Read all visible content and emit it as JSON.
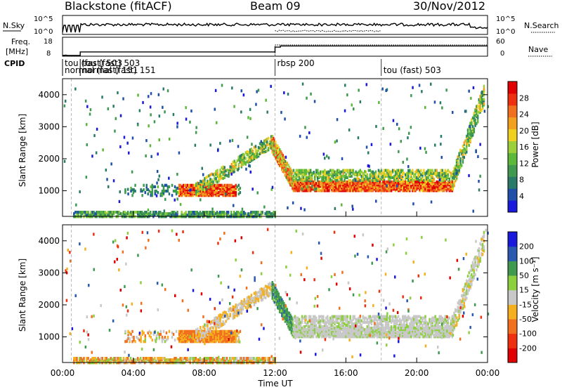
{
  "header": {
    "title": "Blackstone (fitACF)",
    "beam": "Beam 09",
    "date": "30/Nov/2012"
  },
  "summary": {
    "nsky_label": "N.Sky",
    "nsearch_label": "N.Search",
    "noise_ticks": [
      "10^5",
      "10^0"
    ],
    "freq_label": "Freq. [MHz]",
    "freq_ticks": [
      "18",
      "8"
    ],
    "nave_label": "Nave",
    "nave_ticks": [
      "60",
      "0"
    ],
    "cpid_label": "CPID"
  },
  "cpid_segments": [
    {
      "time_h": 0.0,
      "label": "tou (fast) 503"
    },
    {
      "time_h": 0.0,
      "label": "normal (fast) 151"
    },
    {
      "time_h": 1.0,
      "label": "tou (fast) 503"
    },
    {
      "time_h": 1.0,
      "label": "normal (fast) 151"
    },
    {
      "time_h": 12.0,
      "label": "rbsp 200"
    },
    {
      "time_h": 18.0,
      "label": "tou (fast) 503"
    }
  ],
  "chart_data": [
    {
      "type": "heatmap",
      "name": "power",
      "ylabel": "Slant Range [km]",
      "ylim": [
        200,
        4500
      ],
      "xlim_hours": [
        0,
        24
      ],
      "yticks": [
        "1000",
        "2000",
        "3000",
        "4000"
      ],
      "colorbar": {
        "label": "Power [dB]",
        "ticks": [
          "4",
          "8",
          "12",
          "16",
          "20",
          "24",
          "28"
        ],
        "colors": [
          "#1a1adc",
          "#1f4fa8",
          "#2a7a6a",
          "#3f9a50",
          "#5cb83a",
          "#9cd03a",
          "#f0d020",
          "#f2a020",
          "#f07020",
          "#ee3010",
          "#e00000"
        ]
      },
      "features": [
        {
          "desc": "near-range band",
          "t_start": 0.5,
          "t_end": 12,
          "range_km": [
            250,
            400
          ],
          "value_db": 10
        },
        {
          "desc": "backscatter 1000 km",
          "t_start": 5.5,
          "t_end": 10,
          "range_km": [
            900,
            1200
          ],
          "value_db": 24
        },
        {
          "desc": "rising slant band",
          "t_start": 7.5,
          "t_end": 11.5,
          "range_km": [
            1300,
            2600
          ],
          "value_db": 14
        },
        {
          "desc": "descent",
          "t_start": 11.8,
          "t_end": 13,
          "range_km": [
            1200,
            2400
          ],
          "value_db": 18
        },
        {
          "desc": "afternoon band",
          "t_start": 13,
          "t_end": 22,
          "range_km": [
            1100,
            1600
          ],
          "value_db": 22
        },
        {
          "desc": "evening rise",
          "t_start": 22,
          "t_end": 23.8,
          "range_km": [
            1200,
            4300
          ],
          "value_db": 14
        }
      ]
    },
    {
      "type": "heatmap",
      "name": "velocity",
      "ylabel": "Slant Range [km]",
      "ylim": [
        200,
        4500
      ],
      "xlim_hours": [
        0,
        24
      ],
      "yticks": [
        "1000",
        "2000",
        "3000",
        "4000"
      ],
      "xticks": [
        "00:00",
        "04:00",
        "08:00",
        "12:00",
        "16:00",
        "20:00",
        "00:00"
      ],
      "xlabel": "Time UT",
      "colorbar": {
        "label": "Velocity [m s⁻¹]",
        "ticks": [
          "200",
          "100",
          "50",
          "15",
          "-15",
          "-50",
          "-100",
          "-200"
        ],
        "colors": [
          "#1a1adc",
          "#2a5ab0",
          "#3f9a50",
          "#8cd040",
          "#c8c8c8",
          "#f5b020",
          "#f07020",
          "#ee3010",
          "#e00000"
        ]
      },
      "features": [
        {
          "desc": "near-range band",
          "t_start": 0.5,
          "t_end": 12,
          "range_km": [
            250,
            400
          ],
          "value_ms": -60
        },
        {
          "desc": "backscatter 1000 km",
          "t_start": 5.5,
          "t_end": 10,
          "range_km": [
            850,
            1200
          ],
          "value_ms": -60
        },
        {
          "desc": "ground scatter band",
          "t_start": 12,
          "t_end": 22,
          "range_km": [
            1100,
            1700
          ],
          "value_ms": 0
        },
        {
          "desc": "descent",
          "t_start": 11.8,
          "t_end": 13,
          "range_km": [
            1200,
            2400
          ],
          "value_ms": 60
        }
      ]
    }
  ]
}
